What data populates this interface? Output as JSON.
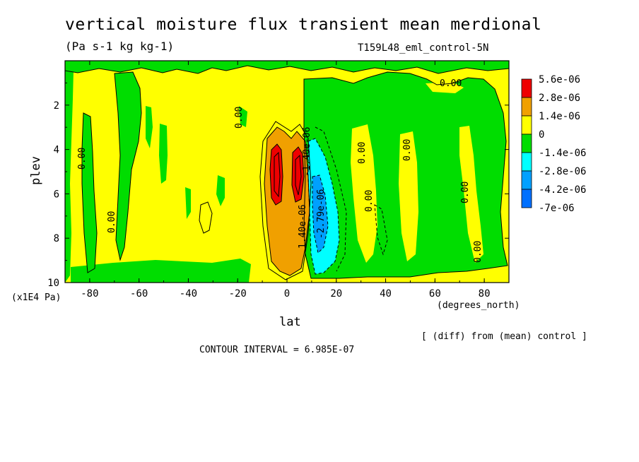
{
  "chart_data": {
    "type": "heatmap",
    "title": "vertical moisture flux transient mean merdional",
    "subtitle": "(Pa s-1 kg kg-1)",
    "run_label": "T159L48_eml_control-5N",
    "xlabel": "lat",
    "x_units": "(degrees_north)",
    "ylabel": "plev",
    "y_units": "(x1E4 Pa)",
    "xlim": [
      -90,
      90
    ],
    "ylim": [
      10,
      0
    ],
    "x_ticks": [
      "-80",
      "-60",
      "-40",
      "-20",
      "0",
      "20",
      "40",
      "60",
      "80"
    ],
    "y_ticks": [
      "2",
      "4",
      "6",
      "8",
      "10"
    ],
    "colorbar": [
      {
        "label": "5.6e-06",
        "color": "#ee0000"
      },
      {
        "label": "2.8e-06",
        "color": "#f0a000"
      },
      {
        "label": "1.4e-06",
        "color": "#ffff00"
      },
      {
        "label": "0",
        "color": "#00dd00"
      },
      {
        "label": "-1.4e-06",
        "color": "#00ffff"
      },
      {
        "label": "-2.8e-06",
        "color": "#00a0ff"
      },
      {
        "label": "-4.2e-06",
        "color": "#0070ff"
      },
      {
        "label": "-7e-06",
        "color": ""
      }
    ],
    "contour_labels": [
      "0.00",
      "1.40e-06",
      "-2.79e-06",
      "-1.40e-06"
    ],
    "note": "[ (diff) from (mean) control ]",
    "contour_interval": "CONTOUR INTERVAL = 6.985E-07"
  }
}
